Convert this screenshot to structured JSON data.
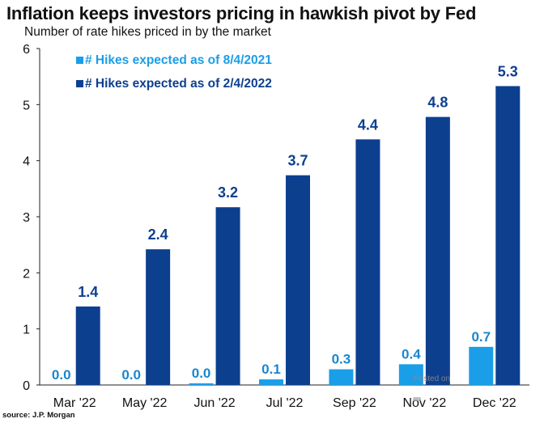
{
  "title": "Inflation keeps investors pricing in hawkish pivot by Fed",
  "subtitle": "Number of rate hikes priced in by the market",
  "source": "source: J.P. Morgan",
  "watermark": "Posted on",
  "colors": {
    "series1": "#1a9ee8",
    "series2": "#0d3f8f",
    "label1": "#1a86d0",
    "label2": "#0d3f8f",
    "axis": "#222222"
  },
  "chart_data": {
    "type": "bar",
    "title": "Inflation keeps investors pricing in hawkish pivot by Fed",
    "subtitle": "Number of rate hikes priced in by the market",
    "xlabel": "",
    "ylabel": "",
    "ylim": [
      0,
      6
    ],
    "yticks": [
      "0",
      "1",
      "2",
      "3",
      "4",
      "5",
      "6"
    ],
    "grid": false,
    "legend": "top-left",
    "categories": [
      "Mar '22",
      "May '22",
      "Jun '22",
      "Jul '22",
      "Sep '22",
      "Nov '22",
      "Dec '22"
    ],
    "series": [
      {
        "name": "# Hikes expected as of 8/4/2021",
        "values": [
          0.0,
          0.0,
          0.03,
          0.1,
          0.28,
          0.37,
          0.68
        ],
        "labels": [
          "0.0",
          "0.0",
          "0.0",
          "0.1",
          "0.3",
          "0.4",
          "0.7"
        ]
      },
      {
        "name": "# Hikes expected as of 2/4/2022",
        "values": [
          1.4,
          2.42,
          3.17,
          3.74,
          4.38,
          4.78,
          5.33
        ],
        "labels": [
          "1.4",
          "2.4",
          "3.2",
          "3.7",
          "4.4",
          "4.8",
          "5.3"
        ]
      }
    ]
  }
}
